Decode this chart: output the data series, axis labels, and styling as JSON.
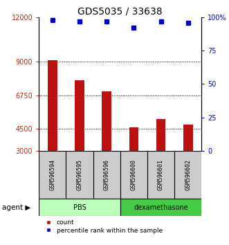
{
  "title": "GDS5035 / 33638",
  "samples": [
    "GSM596594",
    "GSM596595",
    "GSM596596",
    "GSM596600",
    "GSM596601",
    "GSM596602"
  ],
  "counts": [
    9100,
    7750,
    7000,
    4580,
    5150,
    4750
  ],
  "percentiles": [
    98,
    97,
    97,
    92,
    97,
    96
  ],
  "ylim_left": [
    3000,
    12000
  ],
  "ylim_right": [
    0,
    100
  ],
  "yticks_left": [
    3000,
    4500,
    6750,
    9000,
    12000
  ],
  "yticks_right": [
    0,
    25,
    50,
    75,
    100
  ],
  "ytick_labels_left": [
    "3000",
    "4500",
    "6750",
    "9000",
    "12000"
  ],
  "ytick_labels_right": [
    "0",
    "25",
    "50",
    "75",
    "100%"
  ],
  "bar_color": "#bb1111",
  "dot_color": "#0000cc",
  "groups": [
    {
      "label": "PBS",
      "indices": [
        0,
        1,
        2
      ],
      "color": "#bbffbb"
    },
    {
      "label": "dexamethasone",
      "indices": [
        3,
        4,
        5
      ],
      "color": "#44cc44"
    }
  ],
  "group_label": "agent",
  "sample_box_color": "#cccccc",
  "legend_count_label": "count",
  "legend_pct_label": "percentile rank within the sample",
  "title_fontsize": 10,
  "axis_label_color_left": "#cc2200",
  "axis_label_color_right": "#0000cc",
  "bar_width": 0.35
}
